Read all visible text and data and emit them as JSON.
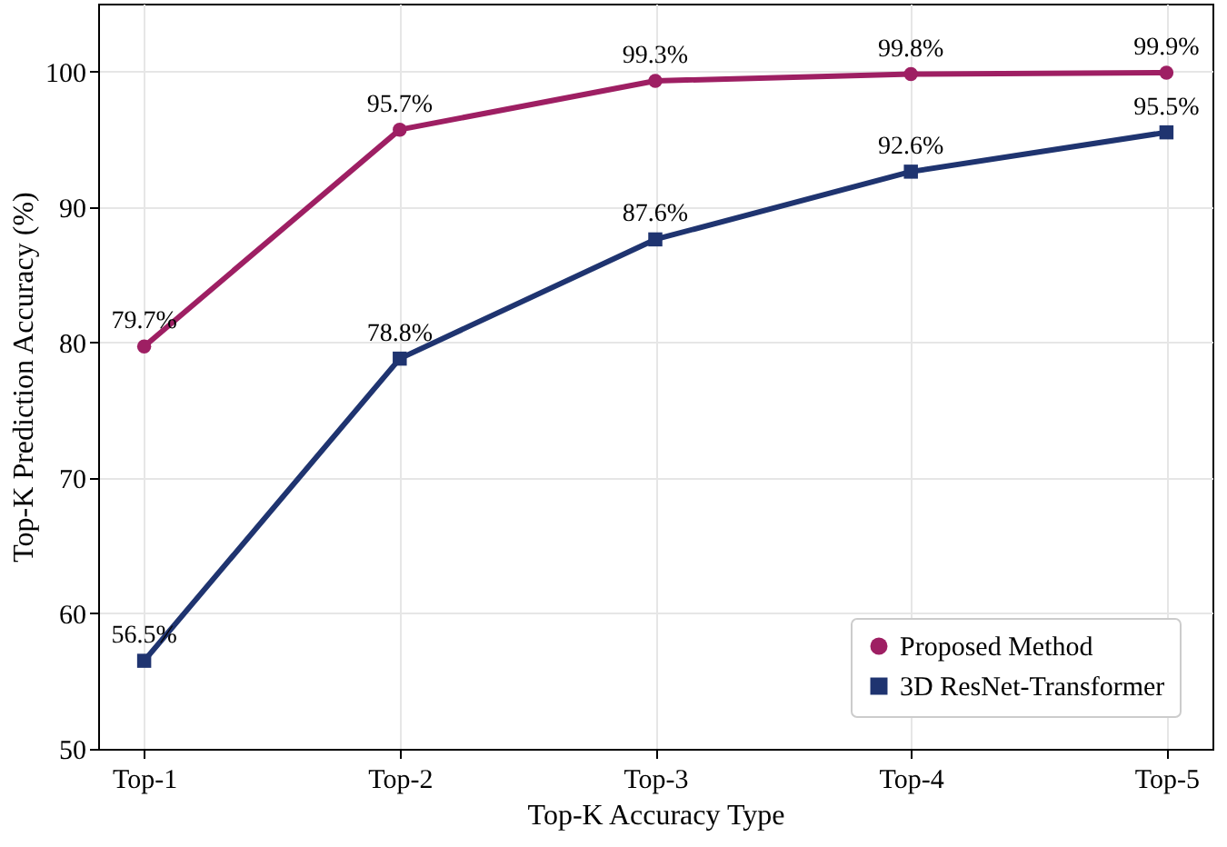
{
  "chart_data": {
    "type": "line",
    "xlabel": "Top-K Accuracy Type",
    "ylabel": "Top-K Prediction Accuracy (%)",
    "categories": [
      "Top-1",
      "Top-2",
      "Top-3",
      "Top-4",
      "Top-5"
    ],
    "series": [
      {
        "name": "Proposed Method",
        "color": "#9e1f63",
        "marker": "circle",
        "values": [
          79.7,
          95.7,
          99.3,
          99.8,
          99.9
        ],
        "value_labels": [
          "79.7%",
          "95.7%",
          "99.3%",
          "99.8%",
          "99.9%"
        ]
      },
      {
        "name": "3D ResNet-Transformer",
        "color": "#1f3470",
        "marker": "square",
        "values": [
          56.5,
          78.8,
          87.6,
          92.6,
          95.5
        ],
        "value_labels": [
          "56.5%",
          "78.8%",
          "87.6%",
          "92.6%",
          "95.5%"
        ]
      }
    ],
    "ylim": [
      50,
      105
    ],
    "yticks": [
      50,
      60,
      70,
      80,
      90,
      100
    ],
    "grid": true,
    "legend": "bottom right",
    "line_style": "solid"
  }
}
